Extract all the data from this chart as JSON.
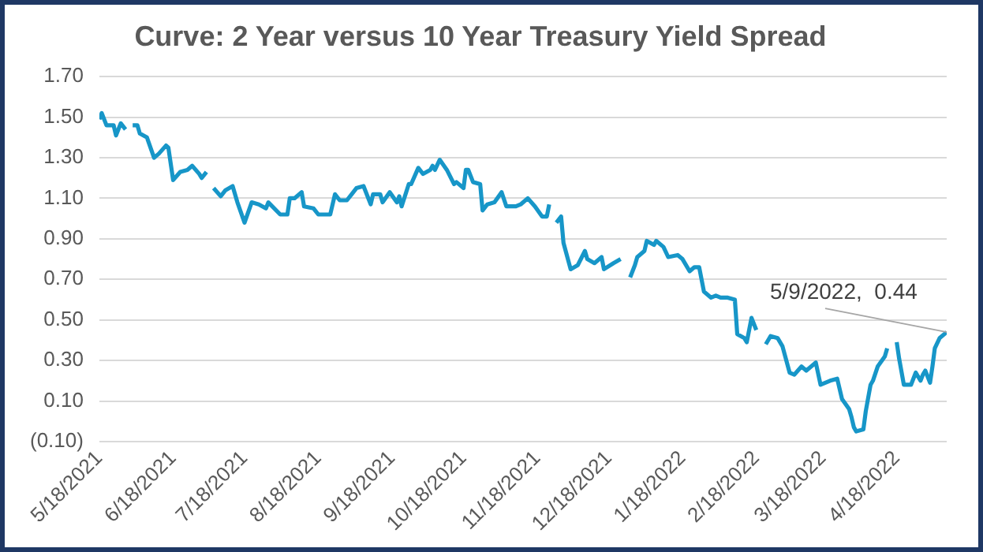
{
  "chart_data": {
    "type": "line",
    "title": "Curve: 2 Year versus 10 Year Treasury Yield Spread",
    "x": [
      "2021-05-18",
      "2021-05-19",
      "2021-05-21",
      "2021-05-24",
      "2021-05-25",
      "2021-05-27",
      "2021-05-29",
      "2021-05-30",
      "2021-06-01",
      "2021-06-03",
      "2021-06-04",
      "2021-06-07",
      "2021-06-10",
      "2021-06-12",
      "2021-06-15",
      "2021-06-16",
      "2021-06-18",
      "2021-06-21",
      "2021-06-24",
      "2021-06-26",
      "2021-06-29",
      "2021-06-30",
      "2021-07-02",
      "2021-07-04",
      "2021-07-05",
      "2021-07-08",
      "2021-07-10",
      "2021-07-13",
      "2021-07-15",
      "2021-07-18",
      "2021-07-21",
      "2021-07-24",
      "2021-07-27",
      "2021-07-28",
      "2021-08-02",
      "2021-08-05",
      "2021-08-06",
      "2021-08-08",
      "2021-08-11",
      "2021-08-12",
      "2021-08-16",
      "2021-08-18",
      "2021-08-23",
      "2021-08-25",
      "2021-08-27",
      "2021-08-30",
      "2021-09-01",
      "2021-09-03",
      "2021-09-06",
      "2021-09-09",
      "2021-09-10",
      "2021-09-13",
      "2021-09-14",
      "2021-09-17",
      "2021-09-20",
      "2021-09-21",
      "2021-09-22",
      "2021-09-25",
      "2021-09-26",
      "2021-09-29",
      "2021-10-01",
      "2021-10-04",
      "2021-10-05",
      "2021-10-06",
      "2021-10-08",
      "2021-10-11",
      "2021-10-14",
      "2021-10-15",
      "2021-10-18",
      "2021-10-19",
      "2021-10-20",
      "2021-10-22",
      "2021-10-25",
      "2021-10-26",
      "2021-10-28",
      "2021-10-31",
      "2021-11-03",
      "2021-11-05",
      "2021-11-09",
      "2021-11-11",
      "2021-11-14",
      "2021-11-17",
      "2021-11-20",
      "2021-11-22",
      "2021-11-23",
      "2021-11-25",
      "2021-11-26",
      "2021-11-28",
      "2021-11-29",
      "2021-12-02",
      "2021-12-05",
      "2021-12-08",
      "2021-12-09",
      "2021-12-12",
      "2021-12-15",
      "2021-12-16",
      "2021-12-20",
      "2021-12-23",
      "2021-12-26",
      "2021-12-27",
      "2021-12-29",
      "2021-12-30",
      "2022-01-02",
      "2022-01-03",
      "2022-01-06",
      "2022-01-07",
      "2022-01-10",
      "2022-01-12",
      "2022-01-16",
      "2022-01-18",
      "2022-01-21",
      "2022-01-23",
      "2022-01-25",
      "2022-01-27",
      "2022-01-30",
      "2022-02-01",
      "2022-02-03",
      "2022-02-06",
      "2022-02-09",
      "2022-02-10",
      "2022-02-13",
      "2022-02-14",
      "2022-02-16",
      "2022-02-18",
      "2022-02-20",
      "2022-02-22",
      "2022-02-24",
      "2022-02-27",
      "2022-03-01",
      "2022-03-04",
      "2022-03-06",
      "2022-03-09",
      "2022-03-11",
      "2022-03-15",
      "2022-03-17",
      "2022-03-21",
      "2022-03-24",
      "2022-03-26",
      "2022-03-29",
      "2022-03-30",
      "2022-03-31",
      "2022-04-01",
      "2022-04-04",
      "2022-04-05",
      "2022-04-07",
      "2022-04-08",
      "2022-04-10",
      "2022-04-13",
      "2022-04-14",
      "2022-04-16",
      "2022-04-18",
      "2022-04-19",
      "2022-04-21",
      "2022-04-24",
      "2022-04-26",
      "2022-04-28",
      "2022-04-29",
      "2022-04-30",
      "2022-05-02",
      "2022-05-03",
      "2022-05-04",
      "2022-05-06",
      "2022-05-09"
    ],
    "series": [
      {
        "color": "#1796c8",
        "values": [
          1.49,
          1.52,
          1.46,
          1.46,
          1.41,
          1.47,
          1.44,
          null,
          1.46,
          1.46,
          1.42,
          1.4,
          1.3,
          1.32,
          1.36,
          1.35,
          1.19,
          1.23,
          1.24,
          1.26,
          1.22,
          1.2,
          1.23,
          null,
          1.15,
          1.11,
          1.14,
          1.16,
          1.08,
          0.98,
          1.08,
          1.07,
          1.05,
          1.08,
          1.02,
          1.02,
          1.1,
          1.1,
          1.13,
          1.06,
          1.05,
          1.02,
          1.02,
          1.12,
          1.09,
          1.09,
          1.12,
          1.15,
          1.16,
          1.07,
          1.12,
          1.12,
          1.08,
          1.13,
          1.08,
          1.11,
          1.06,
          1.17,
          1.17,
          1.25,
          1.22,
          1.24,
          1.26,
          1.24,
          1.29,
          1.24,
          1.17,
          1.18,
          1.15,
          1.24,
          1.24,
          1.18,
          1.17,
          1.04,
          1.07,
          1.08,
          1.13,
          1.06,
          1.06,
          1.07,
          1.1,
          1.06,
          1.01,
          1.01,
          1.07,
          null,
          0.98,
          1.01,
          0.88,
          0.75,
          0.77,
          0.84,
          0.8,
          0.78,
          0.81,
          0.75,
          0.78,
          0.8,
          null,
          0.71,
          0.77,
          0.81,
          0.84,
          0.89,
          0.87,
          0.89,
          0.86,
          0.81,
          0.82,
          0.8,
          0.74,
          0.76,
          0.76,
          0.64,
          0.61,
          0.62,
          0.61,
          0.61,
          0.6,
          0.43,
          0.41,
          0.39,
          0.51,
          0.45,
          null,
          0.38,
          0.42,
          0.41,
          0.37,
          0.24,
          0.23,
          0.27,
          0.25,
          0.29,
          0.18,
          0.2,
          0.21,
          0.11,
          0.06,
          0.02,
          -0.03,
          -0.05,
          -0.04,
          0.05,
          0.18,
          0.2,
          0.27,
          0.32,
          0.36,
          null,
          0.39,
          0.31,
          0.18,
          0.18,
          0.24,
          0.2,
          0.23,
          0.25,
          0.19,
          0.27,
          0.36,
          0.41,
          0.44
        ]
      }
    ],
    "xlim": [
      "2021-05-18",
      "2022-05-09"
    ],
    "xticks": [
      {
        "value": "2021-05-18",
        "label": "5/18/2021"
      },
      {
        "value": "2021-06-18",
        "label": "6/18/2021"
      },
      {
        "value": "2021-07-18",
        "label": "7/18/2021"
      },
      {
        "value": "2021-08-18",
        "label": "8/18/2021"
      },
      {
        "value": "2021-09-18",
        "label": "9/18/2021"
      },
      {
        "value": "2021-10-18",
        "label": "10/18/2021"
      },
      {
        "value": "2021-11-18",
        "label": "11/18/2021"
      },
      {
        "value": "2021-12-18",
        "label": "12/18/2021"
      },
      {
        "value": "2022-01-18",
        "label": "1/18/2022"
      },
      {
        "value": "2022-02-18",
        "label": "2/18/2022"
      },
      {
        "value": "2022-03-18",
        "label": "3/18/2022"
      },
      {
        "value": "2022-04-18",
        "label": "4/18/2022"
      }
    ],
    "ylim": [
      -0.1,
      1.7
    ],
    "yticks": [
      {
        "value": -0.1,
        "label": "(0.10)"
      },
      {
        "value": 0.1,
        "label": "0.10"
      },
      {
        "value": 0.3,
        "label": "0.30"
      },
      {
        "value": 0.5,
        "label": "0.50"
      },
      {
        "value": 0.7,
        "label": "0.70"
      },
      {
        "value": 0.9,
        "label": "0.90"
      },
      {
        "value": 1.1,
        "label": "1.10"
      },
      {
        "value": 1.3,
        "label": "1.30"
      },
      {
        "value": 1.5,
        "label": "1.50"
      },
      {
        "value": 1.7,
        "label": "1.70"
      }
    ],
    "annotations": [
      {
        "text": "5/9/2022,  0.44",
        "x": "2022-05-09",
        "y": 0.44
      }
    ],
    "grid": "y",
    "legend": false,
    "marker": "none",
    "line_style": "solid"
  }
}
